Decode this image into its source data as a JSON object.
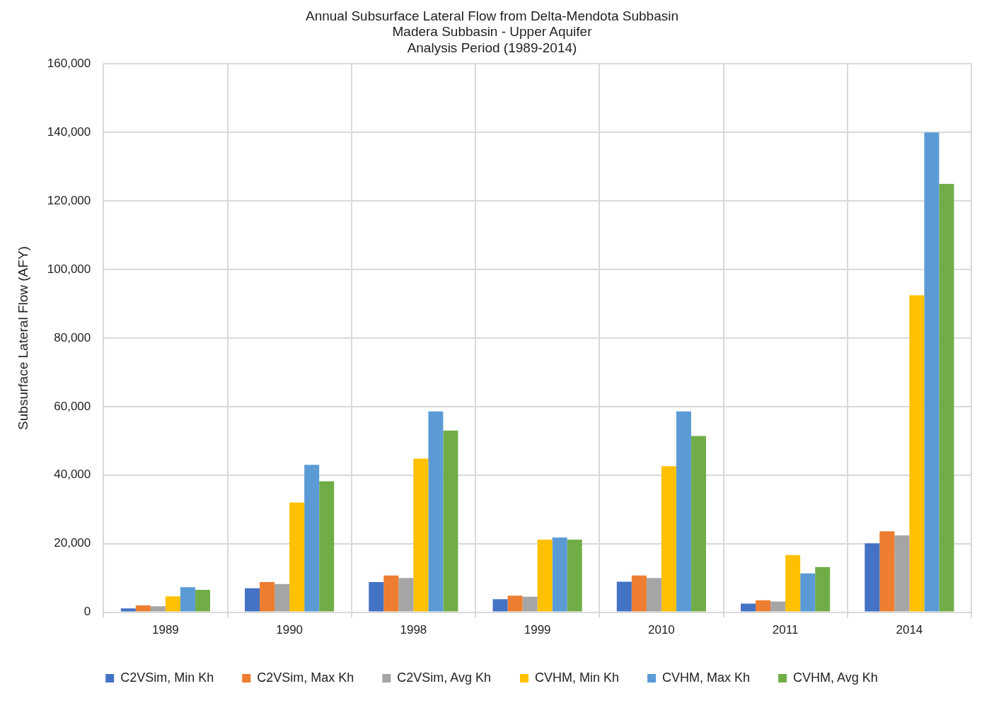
{
  "chart_data": {
    "type": "bar",
    "title": [
      "Annual Subsurface Lateral Flow from Delta-Mendota Subbasin",
      "Madera Subbasin - Upper Aquifer",
      "Analysis Period (1989-2014)"
    ],
    "ylabel": "Subsurface Lateral Flow (AFY)",
    "categories": [
      "1989",
      "1990",
      "1998",
      "1999",
      "2010",
      "2011",
      "2014"
    ],
    "ylim": [
      0,
      160000
    ],
    "yticks": [
      {
        "value": 0,
        "label": "0"
      },
      {
        "value": 20000,
        "label": "20,000"
      },
      {
        "value": 40000,
        "label": "40,000"
      },
      {
        "value": 60000,
        "label": "60,000"
      },
      {
        "value": 80000,
        "label": "80,000"
      },
      {
        "value": 100000,
        "label": "100,000"
      },
      {
        "value": 120000,
        "label": "120,000"
      },
      {
        "value": 140000,
        "label": "140,000"
      },
      {
        "value": 160000,
        "label": "160,000"
      }
    ],
    "grid": true,
    "legend": "bottom",
    "series": [
      {
        "name": "C2VSim, Min Kh",
        "color": "#4472c4",
        "values": [
          1100,
          7000,
          8800,
          3800,
          8900,
          2500,
          20100
        ]
      },
      {
        "name": "C2VSim, Max Kh",
        "color": "#ed7d31",
        "values": [
          2000,
          8800,
          10700,
          4800,
          10700,
          3500,
          23600
        ]
      },
      {
        "name": "C2VSim, Avg Kh",
        "color": "#a5a5a5",
        "values": [
          1700,
          8200,
          10000,
          4500,
          10000,
          3100,
          22400
        ]
      },
      {
        "name": "CVHM, Min Kh",
        "color": "#ffc000",
        "values": [
          4600,
          32000,
          44800,
          21200,
          42600,
          16700,
          92500
        ]
      },
      {
        "name": "CVHM, Max Kh",
        "color": "#5b9bd5",
        "values": [
          7300,
          43000,
          58600,
          21800,
          58600,
          11300,
          140000
        ]
      },
      {
        "name": "CVHM, Avg Kh",
        "color": "#70ad47",
        "values": [
          6500,
          38200,
          53000,
          21200,
          51400,
          13200,
          125000
        ]
      }
    ]
  }
}
